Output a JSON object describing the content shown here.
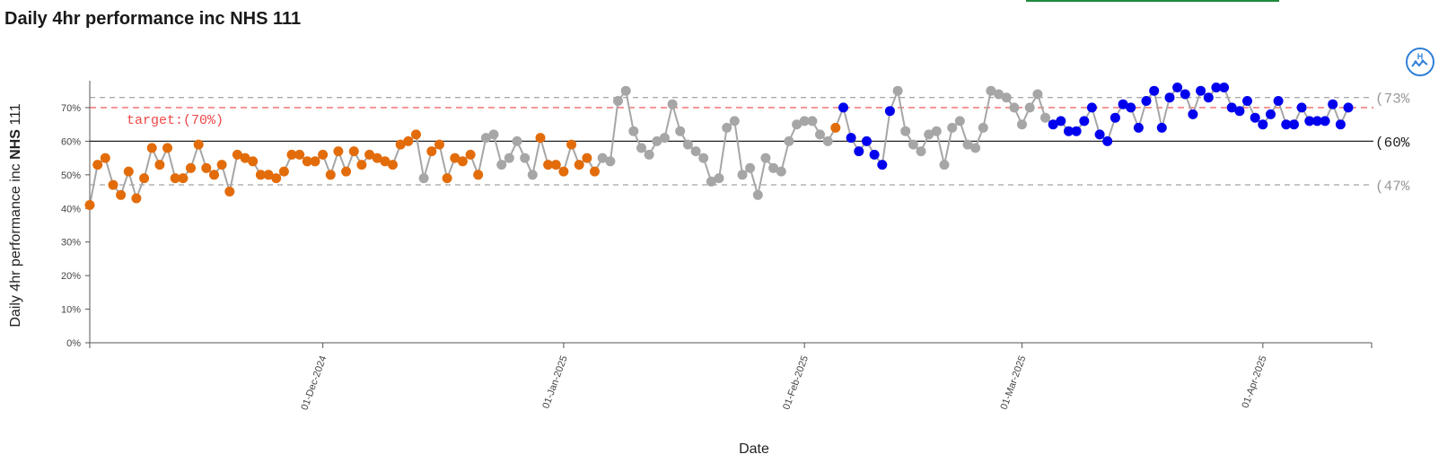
{
  "title": "Daily 4hr performance inc NHS 111",
  "help_icon": "spc-help-icon",
  "colors": {
    "line": "#a6a6a6",
    "common_cause": "#a6a6a6",
    "concern": "#e36c0a",
    "improvement": "#0000ee",
    "target": "#f04848",
    "limit": "#8c8c8c",
    "mean": "#222222",
    "accent": "#1e8a3c"
  },
  "chart_data": {
    "type": "line",
    "title": "Daily 4hr performance inc NHS 111",
    "xlabel": "Date",
    "ylabel_parts": [
      "Daily 4hr performance inc ",
      "NHS",
      " 111"
    ],
    "ylim": [
      0,
      0.78
    ],
    "yticks": [
      "0%",
      "10%",
      "20%",
      "30%",
      "40%",
      "50%",
      "60%",
      "70%"
    ],
    "x_start": "2024-11-01",
    "x_end": "2025-04-15",
    "xticks": [
      {
        "date": "2024-12-01",
        "label": "01-Dec-2024"
      },
      {
        "date": "2025-01-01",
        "label": "01-Jan-2025"
      },
      {
        "date": "2025-02-01",
        "label": "01-Feb-2025"
      },
      {
        "date": "2025-03-01",
        "label": "01-Mar-2025"
      },
      {
        "date": "2025-04-01",
        "label": "01-Apr-2025"
      }
    ],
    "reference_lines": {
      "mean": {
        "value": 0.6,
        "label": "(60%"
      },
      "upper_limit": {
        "value": 0.73,
        "label": "(73%"
      },
      "lower_limit": {
        "value": 0.47,
        "label": "(47%"
      },
      "target": {
        "value": 0.7,
        "label": "target:(70%)"
      }
    },
    "grid": false,
    "series": [
      {
        "start": "2024-11-01",
        "values": [
          0.41,
          0.53,
          0.55,
          0.47,
          0.44,
          0.51,
          0.43,
          0.49,
          0.58,
          0.53,
          0.58,
          0.49,
          0.49,
          0.52,
          0.59,
          0.52,
          0.5,
          0.53,
          0.45,
          0.56,
          0.55,
          0.54,
          0.5,
          0.5,
          0.49,
          0.51,
          0.56,
          0.56,
          0.54,
          0.54,
          0.56,
          0.5,
          0.57,
          0.51,
          0.57,
          0.53,
          0.56,
          0.55,
          0.54,
          0.53,
          0.59,
          0.6,
          0.62,
          0.49,
          0.57,
          0.59,
          0.49,
          0.55,
          0.54,
          0.56,
          0.5,
          0.61,
          0.62,
          0.53,
          0.55,
          0.6,
          0.55,
          0.5,
          0.61,
          0.53,
          0.53,
          0.51,
          0.59,
          0.53,
          0.55,
          0.51,
          0.55,
          0.54,
          0.72,
          0.75,
          0.63,
          0.58,
          0.56,
          0.6,
          0.61,
          0.71,
          0.63,
          0.59,
          0.57,
          0.55,
          0.48,
          0.49,
          0.64,
          0.66,
          0.5,
          0.52,
          0.44,
          0.55,
          0.52,
          0.51,
          0.6,
          0.65,
          0.66,
          0.66,
          0.62,
          0.6,
          0.64,
          0.7,
          0.61,
          0.57,
          0.6,
          0.56,
          0.53,
          0.69,
          0.75,
          0.63,
          0.59,
          0.57,
          0.62,
          0.63,
          0.53,
          0.64,
          0.66,
          0.59,
          0.58,
          0.64,
          0.75,
          0.74,
          0.73,
          0.7,
          0.65,
          0.7,
          0.74,
          0.67,
          0.65,
          0.66,
          0.63,
          0.63,
          0.66,
          0.7,
          0.62,
          0.6,
          0.67,
          0.71,
          0.7,
          0.64,
          0.72,
          0.75,
          0.64,
          0.73,
          0.76,
          0.74,
          0.68,
          0.75,
          0.73,
          0.76,
          0.76,
          0.7,
          0.69,
          0.72,
          0.67,
          0.65,
          0.68,
          0.72,
          0.65,
          0.65,
          0.7,
          0.66,
          0.66,
          0.66,
          0.71,
          0.65,
          0.7
        ],
        "point_status": "cccccccccccccccccccccccccccccccccccccccccccncccccccnnnnnnnccccccccnnnnnnnnnnnnnnnnnnnnnnnnnnnnnnciiiiiiinnnnnnnnnnnnnnnnnnnniiiiiiiiiiiiiiiiiiiiiiiiiiiiiiiiiiiiiiiiiiiiiiiiiiiiiiiiiiiiiiiiii",
        "point_status_key": {
          "c": "concern",
          "n": "common_cause",
          "i": "improvement"
        }
      }
    ]
  }
}
